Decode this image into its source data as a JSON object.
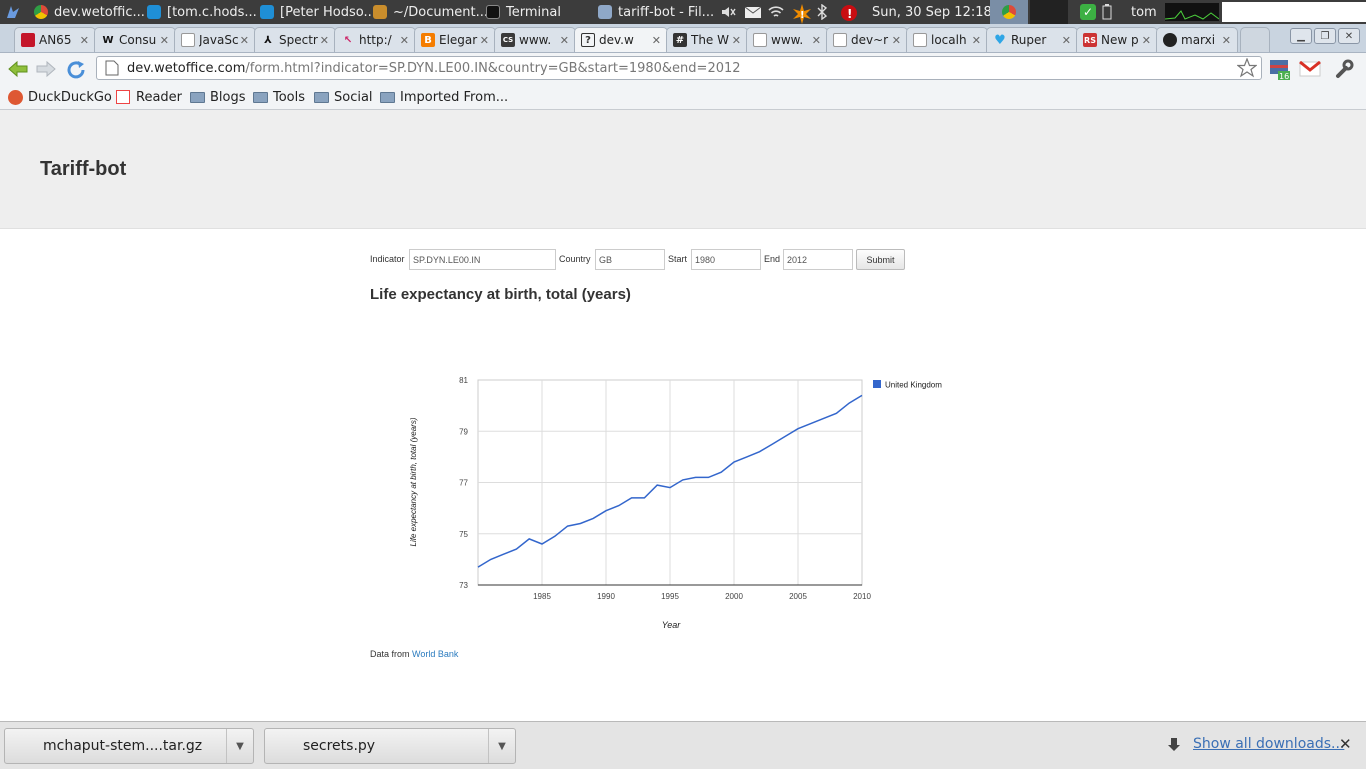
{
  "os_panel": {
    "tasks": [
      {
        "label": "dev.wetoffic...",
        "color": "#dd4b39"
      },
      {
        "label": "[tom.c.hods...",
        "color": "#1f8fd6"
      },
      {
        "label": "[Peter Hodso...",
        "color": "#1f8fd6"
      },
      {
        "label": "~/Document...",
        "color": "#c98d2c"
      },
      {
        "label": "Terminal",
        "color": "#222222"
      },
      {
        "label": "tariff-bot - Fil...",
        "color": "#8fa8c8"
      }
    ],
    "clock": "Sun, 30 Sep  12:18",
    "user": "tom"
  },
  "tabs": [
    {
      "title": "AN65",
      "fav": "#c4162a"
    },
    {
      "title": "Consu",
      "fav": "#ffffff"
    },
    {
      "title": "JavaSc",
      "fav": "#bbbbbb"
    },
    {
      "title": "Spectr",
      "fav": "#222222"
    },
    {
      "title": "http:/",
      "fav": "#cc2266"
    },
    {
      "title": "Elegar",
      "fav": "#f57d00"
    },
    {
      "title": "www.",
      "fav": "#3a3a3a"
    },
    {
      "title": "dev.w",
      "fav": "#ffffff"
    },
    {
      "title": "The W",
      "fav": "#333333"
    },
    {
      "title": "www.",
      "fav": "#bbbbbb"
    },
    {
      "title": "dev~r",
      "fav": "#bbbbbb"
    },
    {
      "title": "localh",
      "fav": "#bbbbbb"
    },
    {
      "title": "Ruper",
      "fav": "#2fa6e6"
    },
    {
      "title": "New p",
      "fav": "#cc3333"
    },
    {
      "title": "marxi",
      "fav": "#222222"
    }
  ],
  "address": {
    "domain": "dev.wetoffice.com",
    "path": "/form.html?indicator=SP.DYN.LE00.IN&country=GB&start=1980&end=2012"
  },
  "bookmarks": [
    "DuckDuckGo",
    "Reader",
    "Blogs",
    "Tools",
    "Social",
    "Imported From..."
  ],
  "page": {
    "site_title": "Tariff-bot",
    "form": {
      "indicator_label": "Indicator",
      "indicator_value": "SP.DYN.LE00.IN",
      "country_label": "Country",
      "country_value": "GB",
      "start_label": "Start",
      "start_value": "1980",
      "end_label": "End",
      "end_value": "2012",
      "submit_label": "Submit"
    },
    "chart_heading": "Life expectancy at birth, total (years)",
    "source_prefix": "Data from",
    "source_link": "World Bank"
  },
  "chart_data": {
    "type": "line",
    "title": "",
    "xlabel": "Year",
    "ylabel": "Life expectancy at birth, total (years)",
    "xlim": [
      1980,
      2010
    ],
    "ylim": [
      73,
      81
    ],
    "xticks": [
      1985,
      1990,
      1995,
      2000,
      2005,
      2010
    ],
    "yticks": [
      73,
      75,
      77,
      79,
      81
    ],
    "grid": true,
    "legend": "right",
    "series": [
      {
        "name": "United Kingdom",
        "color": "#3366cc",
        "x": [
          1980,
          1981,
          1982,
          1983,
          1984,
          1985,
          1986,
          1987,
          1988,
          1989,
          1990,
          1991,
          1992,
          1993,
          1994,
          1995,
          1996,
          1997,
          1998,
          1999,
          2000,
          2001,
          2002,
          2003,
          2004,
          2005,
          2006,
          2007,
          2008,
          2009,
          2010
        ],
        "values": [
          73.7,
          74.0,
          74.2,
          74.4,
          74.8,
          74.6,
          74.9,
          75.3,
          75.4,
          75.6,
          75.9,
          76.1,
          76.4,
          76.4,
          76.9,
          76.8,
          77.1,
          77.2,
          77.2,
          77.4,
          77.8,
          78.0,
          78.2,
          78.5,
          78.8,
          79.1,
          79.3,
          79.5,
          79.7,
          80.1,
          80.4
        ]
      }
    ]
  },
  "downloads": {
    "items": [
      "mchaput-stem....tar.gz",
      "secrets.py"
    ],
    "show_all": "Show all downloads..."
  }
}
